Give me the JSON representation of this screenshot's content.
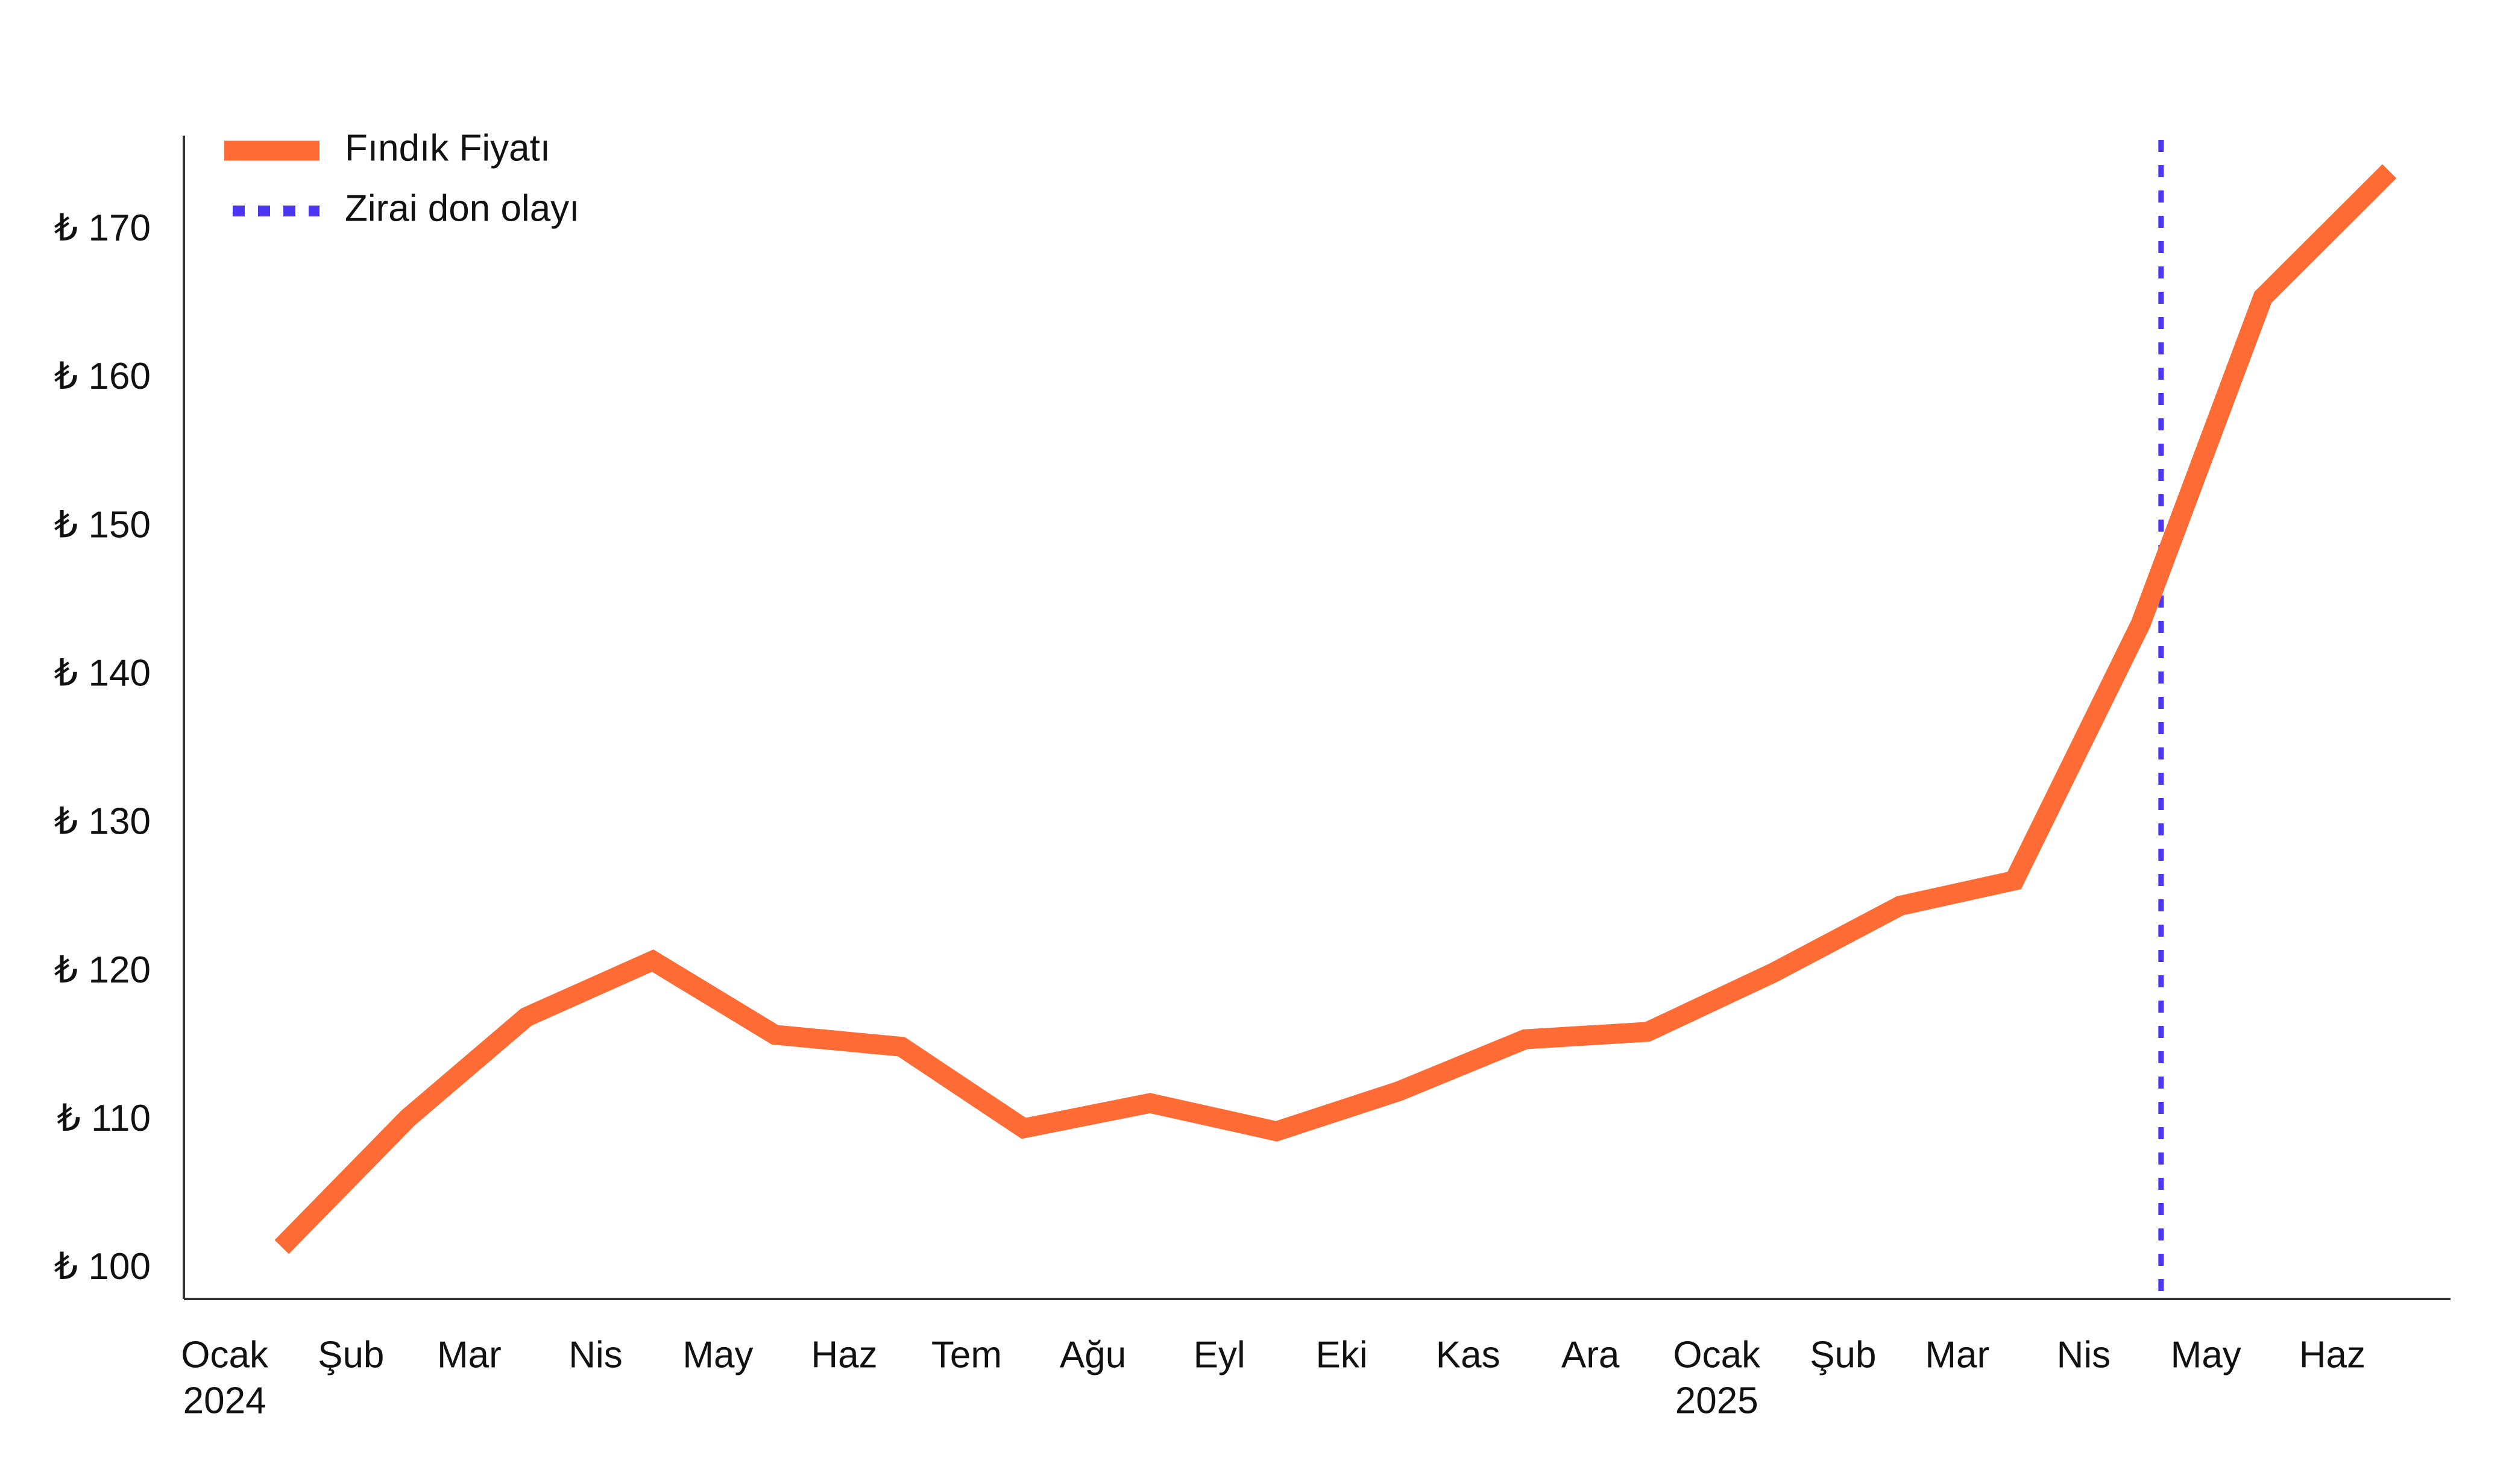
{
  "chart_data": {
    "type": "line",
    "title": "",
    "xlabel": "",
    "ylabel": "",
    "categories": [
      [
        "Ocak",
        "2024"
      ],
      [
        "Şub"
      ],
      [
        "Mar"
      ],
      [
        "Nis"
      ],
      [
        "May"
      ],
      [
        "Haz"
      ],
      [
        "Tem"
      ],
      [
        "Ağu"
      ],
      [
        "Eyl"
      ],
      [
        "Eki"
      ],
      [
        "Kas"
      ],
      [
        "Ara"
      ],
      [
        "Ocak",
        "2025"
      ],
      [
        "Şub"
      ],
      [
        "Mar"
      ],
      [
        "Nis"
      ],
      [
        "May"
      ],
      [
        "Haz"
      ]
    ],
    "x": [
      "2024-01-01",
      "2024-02-01",
      "2024-03-01",
      "2024-04-01",
      "2024-05-01",
      "2024-06-01",
      "2024-07-01",
      "2024-08-01",
      "2024-09-01",
      "2024-10-01",
      "2024-11-01",
      "2024-12-01",
      "2025-01-01",
      "2025-02-01",
      "2025-03-01",
      "2025-04-01",
      "2025-05-01",
      "2025-06-01"
    ],
    "series": [
      {
        "name": "Fındık Fiyatı",
        "color": "#FF6B35",
        "style": "solid",
        "x": [
          "2024-01-15",
          "2024-02-15",
          "2024-03-15",
          "2024-04-15",
          "2024-05-15",
          "2024-06-15",
          "2024-07-15",
          "2024-08-15",
          "2024-09-15",
          "2024-10-15",
          "2024-11-15",
          "2024-12-15",
          "2025-01-15",
          "2025-02-15",
          "2025-03-15",
          "2025-04-15",
          "2025-05-15",
          "2025-06-15"
        ],
        "values": [
          101.5,
          110.2,
          117.0,
          120.8,
          115.8,
          115.0,
          109.5,
          111.2,
          109.3,
          112.0,
          115.5,
          116.0,
          120.0,
          124.5,
          126.2,
          143.5,
          165.5,
          174.0
        ]
      }
    ],
    "events": [
      {
        "name": "Zirai don olayı",
        "x": "2025-04-20",
        "color": "#4B35F0",
        "style": "dotted"
      }
    ],
    "y_ticks": [
      100,
      110,
      120,
      130,
      140,
      150,
      160,
      170
    ],
    "y_tick_format": "₺ {v}",
    "ylim": [
      98.0,
      176.4
    ],
    "xlim": [
      "2023-12-22",
      "2025-06-30"
    ],
    "grid": false,
    "legend": "top-left"
  }
}
